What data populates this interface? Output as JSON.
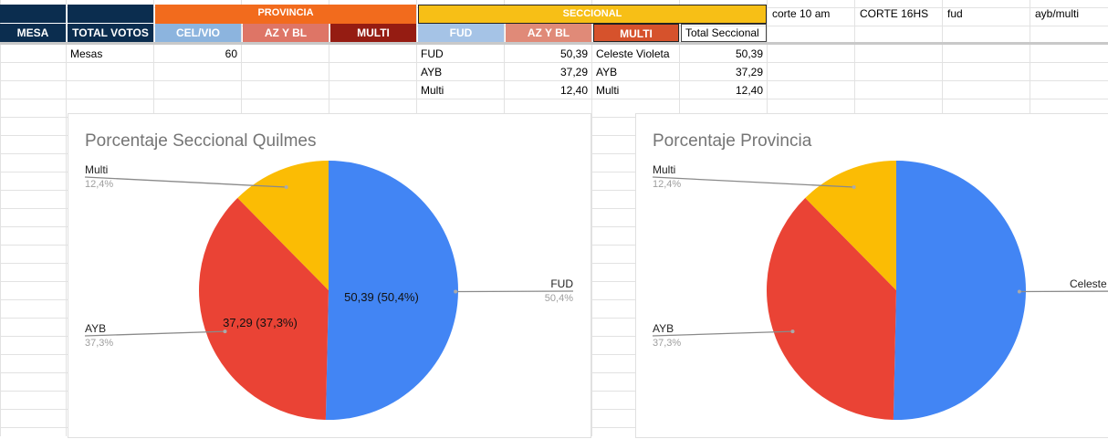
{
  "sheet": {
    "header_top": {
      "provincia": "PROVINCIA",
      "seccional": "SECCIONAL",
      "notes": [
        "corte 10 am",
        "CORTE 16HS",
        "fud",
        "ayb/multi"
      ]
    },
    "header_sub": {
      "mesa": "MESA",
      "total_votos": "TOTAL VOTOS",
      "prov_cols": [
        "CEL/VIO",
        "AZ Y BL",
        "MULTI"
      ],
      "secc_cols": [
        "FUD",
        "AZ Y BL",
        "MULTI"
      ],
      "total_seccional": "Total Seccional"
    },
    "rows": {
      "mesas_label": "Mesas",
      "mesas_value": "60",
      "seccional_names": [
        "FUD",
        "AYB",
        "Multi"
      ],
      "seccional_values": [
        "50,39",
        "37,29",
        "12,40"
      ],
      "total_names": [
        "Celeste Violeta",
        "AYB",
        "Multi"
      ],
      "total_values": [
        "50,39",
        "37,29",
        "12,40"
      ]
    },
    "colors": {
      "navy": "#0b2d4f",
      "orange": "#f26b1d",
      "yellow": "#f7bf16",
      "light_blue": "#8cb4de",
      "salmon": "#de7566",
      "dark_red": "#951c12",
      "blue_fud": "#a5c3e6",
      "salmon2": "#e08a78",
      "red2": "#d6522c"
    }
  },
  "chart_data": [
    {
      "type": "pie",
      "title": "Porcentaje Seccional Quilmes",
      "slices": [
        {
          "label": "FUD",
          "value": 50.39,
          "percent": "50,4%",
          "inner": "50,39 (50,4%)",
          "color": "#4285f4"
        },
        {
          "label": "AYB",
          "value": 37.29,
          "percent": "37,3%",
          "inner": "37,29 (37,3%)",
          "color": "#ea4335"
        },
        {
          "label": "Multi",
          "value": 12.4,
          "percent": "12,4%",
          "inner": "",
          "color": "#fbbc04"
        }
      ]
    },
    {
      "type": "pie",
      "title": "Porcentaje Provincia",
      "slices": [
        {
          "label": "Celeste V",
          "value": 50.39,
          "percent": "",
          "inner": "",
          "color": "#4285f4"
        },
        {
          "label": "AYB",
          "value": 37.29,
          "percent": "37,3%",
          "inner": "",
          "color": "#ea4335"
        },
        {
          "label": "Multi",
          "value": 12.4,
          "percent": "12,4%",
          "inner": "",
          "color": "#fbbc04"
        }
      ]
    }
  ]
}
